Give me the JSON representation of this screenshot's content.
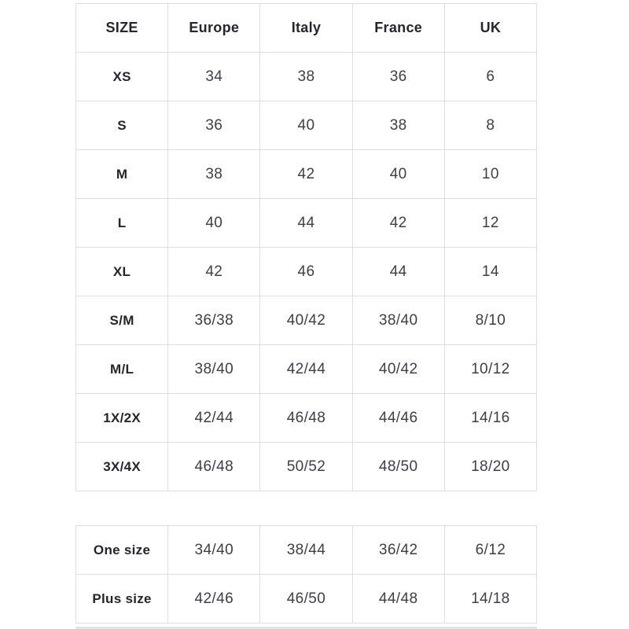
{
  "colors": {
    "background": "#ffffff",
    "border": "#dedede",
    "header_text": "#26242e",
    "cell_text": "#3f3e48"
  },
  "size_chart": {
    "columns": [
      "SIZE",
      "Europe",
      "Italy",
      "France",
      "UK"
    ],
    "rows": [
      {
        "label": "XS",
        "values": [
          "34",
          "38",
          "36",
          "6"
        ]
      },
      {
        "label": "S",
        "values": [
          "36",
          "40",
          "38",
          "8"
        ]
      },
      {
        "label": "M",
        "values": [
          "38",
          "42",
          "40",
          "10"
        ]
      },
      {
        "label": "L",
        "values": [
          "40",
          "44",
          "42",
          "12"
        ]
      },
      {
        "label": "XL",
        "values": [
          "42",
          "46",
          "44",
          "14"
        ]
      },
      {
        "label": "S/M",
        "values": [
          "36/38",
          "40/42",
          "38/40",
          "8/10"
        ]
      },
      {
        "label": "M/L",
        "values": [
          "38/40",
          "42/44",
          "40/42",
          "10/12"
        ]
      },
      {
        "label": "1X/2X",
        "values": [
          "42/44",
          "46/48",
          "44/46",
          "14/16"
        ]
      },
      {
        "label": "3X/4X",
        "values": [
          "46/48",
          "50/52",
          "48/50",
          "18/20"
        ]
      }
    ]
  },
  "special_sizes": {
    "rows": [
      {
        "label": "One size",
        "values": [
          "34/40",
          "38/44",
          "36/42",
          "6/12"
        ]
      },
      {
        "label": "Plus size",
        "values": [
          "42/46",
          "46/50",
          "44/48",
          "14/18"
        ]
      }
    ]
  }
}
